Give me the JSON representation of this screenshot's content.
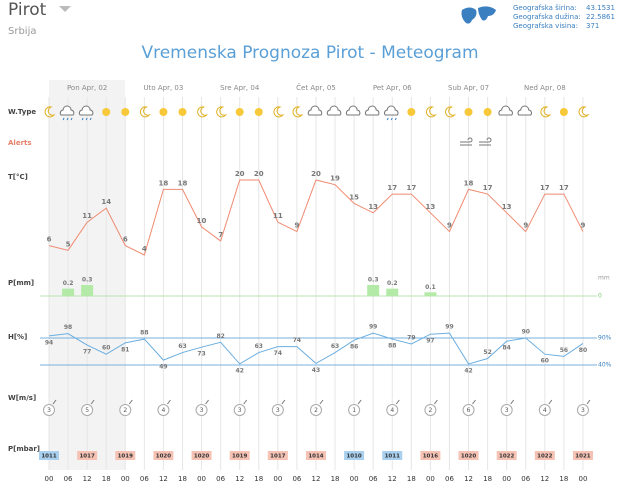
{
  "header": {
    "city": "Pirot",
    "country": "Srbija",
    "title": "Vremenska Prognoza Pirot - Meteogram",
    "geo": [
      {
        "label": "Geografska širina:",
        "value": 43.1531
      },
      {
        "label": "Geografska dužina:",
        "value": 22.5861
      },
      {
        "label": "Geografska visina:",
        "value": 371
      }
    ]
  },
  "days": [
    "Pon Apr, 02",
    "Uto Apr, 03",
    "Sre Apr, 04",
    "Čet Apr, 05",
    "Pet Apr, 06",
    "Sub Apr, 07",
    "Ned Apr, 08"
  ],
  "rows": {
    "wtype": "W.Type",
    "alerts": "Alerts",
    "temp": "T[°C]",
    "precip": "P[mm]",
    "hum": "H[%]",
    "wind": "W[m/s]",
    "press": "P[mbar]"
  },
  "hours": [
    "00",
    "06",
    "12",
    "18",
    "00",
    "06",
    "12",
    "18",
    "00",
    "06",
    "12",
    "18",
    "00",
    "06",
    "12",
    "18",
    "00",
    "06",
    "12",
    "18",
    "00",
    "06",
    "12",
    "18",
    "00",
    "06",
    "12",
    "18",
    "00"
  ],
  "temperature": {
    "values": [
      6,
      5,
      11,
      14,
      6,
      4,
      18,
      18,
      10,
      7,
      20,
      20,
      11,
      9,
      20,
      19,
      15,
      13,
      17,
      17,
      13,
      9,
      18,
      17,
      13,
      9,
      17,
      17,
      9
    ]
  },
  "precipitation": {
    "values": [
      null,
      0.2,
      0.3,
      null,
      null,
      null,
      null,
      null,
      null,
      null,
      null,
      null,
      null,
      null,
      null,
      null,
      null,
      0.3,
      0.2,
      null,
      0.1,
      null,
      null,
      null,
      null,
      null,
      null,
      null,
      null
    ],
    "unit": "mm",
    "zero": 0
  },
  "humidity": {
    "values": [
      94,
      98,
      77,
      60,
      81,
      88,
      49,
      63,
      73,
      82,
      42,
      63,
      74,
      74,
      43,
      63,
      86,
      99,
      88,
      79,
      97,
      99,
      42,
      52,
      84,
      90,
      60,
      56,
      80
    ],
    "ref_lines": [
      {
        "value": 90,
        "label": "90%"
      },
      {
        "value": 40,
        "label": "40%"
      }
    ]
  },
  "wind": {
    "values": [
      3,
      5,
      2,
      4,
      3,
      3,
      3,
      2,
      1,
      4,
      2,
      6,
      3,
      4,
      3
    ]
  },
  "pressure": {
    "values": [
      1011,
      1017,
      1019,
      1020,
      1020,
      1019,
      1017,
      1014,
      1010,
      1011,
      1016,
      1020,
      1022,
      1022,
      1021
    ]
  }
}
